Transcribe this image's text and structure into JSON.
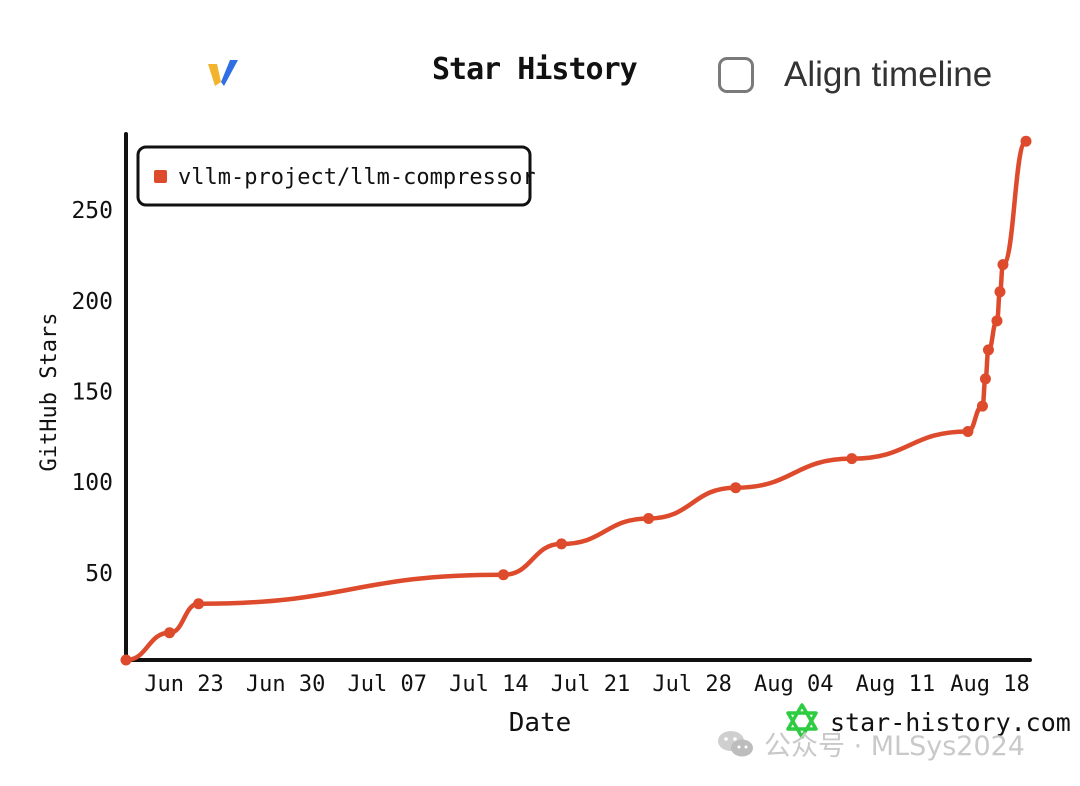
{
  "header": {
    "title": "Star History",
    "align_label": "Align timeline",
    "align_checked": false
  },
  "brand": {
    "site": "star-history.com",
    "logo_icon": "vllm-logo-icon",
    "site_icon": "star-history-logo-icon"
  },
  "watermark": {
    "text": "公众号 · MLSys2024",
    "icon": "wechat-icon"
  },
  "colors": {
    "series": "#dd4b2c",
    "axis": "#111111",
    "site_icon": "#2ecc40"
  },
  "chart_data": {
    "type": "line",
    "title": "Star History",
    "xlabel": "Date",
    "ylabel": "GitHub Stars",
    "x_ticks": [
      "Jun 23",
      "Jun 30",
      "Jul 07",
      "Jul 14",
      "Jul 21",
      "Jul 28",
      "Aug 04",
      "Aug 11",
      "Aug 18"
    ],
    "y_ticks": [
      50,
      100,
      150,
      200,
      250
    ],
    "xlim": [
      "2024-06-19",
      "2024-08-20"
    ],
    "ylim": [
      2,
      292
    ],
    "legend": {
      "placement": "top-left"
    },
    "series": [
      {
        "name": "vllm-project/llm-compressor",
        "color": "#dd4b2c",
        "points": [
          {
            "x": "2024-06-19",
            "y": 2
          },
          {
            "x": "2024-06-22",
            "y": 17
          },
          {
            "x": "2024-06-24",
            "y": 33
          },
          {
            "x": "2024-07-15",
            "y": 49
          },
          {
            "x": "2024-07-19",
            "y": 66
          },
          {
            "x": "2024-07-25",
            "y": 80
          },
          {
            "x": "2024-07-31",
            "y": 97
          },
          {
            "x": "2024-08-08",
            "y": 113
          },
          {
            "x": "2024-08-16",
            "y": 128
          },
          {
            "x": "2024-08-17",
            "y": 142
          },
          {
            "x": "2024-08-17",
            "y": 157
          },
          {
            "x": "2024-08-17",
            "y": 173
          },
          {
            "x": "2024-08-18",
            "y": 189
          },
          {
            "x": "2024-08-18",
            "y": 205
          },
          {
            "x": "2024-08-18",
            "y": 220
          },
          {
            "x": "2024-08-20",
            "y": 288
          }
        ]
      }
    ]
  }
}
